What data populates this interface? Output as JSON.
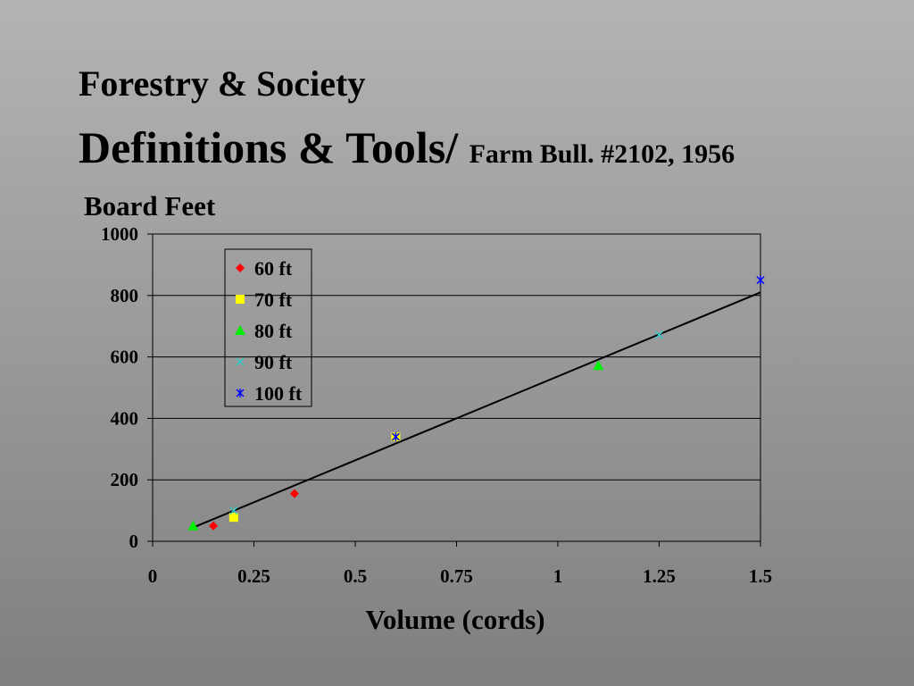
{
  "slide": {
    "title_line1": "Forestry & Society",
    "title_line2_main": "Definitions & Tools/",
    "title_line2_sub": "Farm Bull. #2102, 1956"
  },
  "chart_data": {
    "type": "scatter",
    "ylabel": "Board Feet",
    "xlabel": "Volume (cords)",
    "xlim": [
      0,
      1.5
    ],
    "ylim": [
      0,
      1000
    ],
    "xticks": [
      0,
      0.25,
      0.5,
      0.75,
      1,
      1.25,
      1.5
    ],
    "xtick_labels": [
      "0",
      "0.25",
      "0.5",
      "0.75",
      "1",
      "1.25",
      "1.5"
    ],
    "yticks": [
      0,
      200,
      400,
      600,
      800,
      1000
    ],
    "ytick_labels": [
      "0",
      "200",
      "400",
      "600",
      "800",
      "1000"
    ],
    "grid": "horizontal",
    "legend_position": "top-left",
    "series": [
      {
        "name": "60 ft",
        "marker": "diamond",
        "color": "#ff0000",
        "points": [
          [
            0.15,
            50
          ],
          [
            0.35,
            155
          ]
        ]
      },
      {
        "name": "70 ft",
        "marker": "square",
        "color": "#ffff00",
        "points": [
          [
            0.2,
            78
          ],
          [
            0.6,
            340
          ]
        ]
      },
      {
        "name": "80 ft",
        "marker": "triangle",
        "color": "#00ee00",
        "points": [
          [
            0.1,
            50
          ],
          [
            1.1,
            572
          ]
        ]
      },
      {
        "name": "90 ft",
        "marker": "x",
        "color": "#33cccc",
        "points": [
          [
            0.2,
            100
          ],
          [
            1.25,
            672
          ]
        ]
      },
      {
        "name": "100 ft",
        "marker": "star",
        "color": "#0000ff",
        "points": [
          [
            0.6,
            340
          ],
          [
            1.5,
            850
          ]
        ]
      }
    ],
    "trendline": {
      "color": "#000000",
      "from": [
        0.1,
        45
      ],
      "to": [
        1.5,
        810
      ]
    }
  }
}
